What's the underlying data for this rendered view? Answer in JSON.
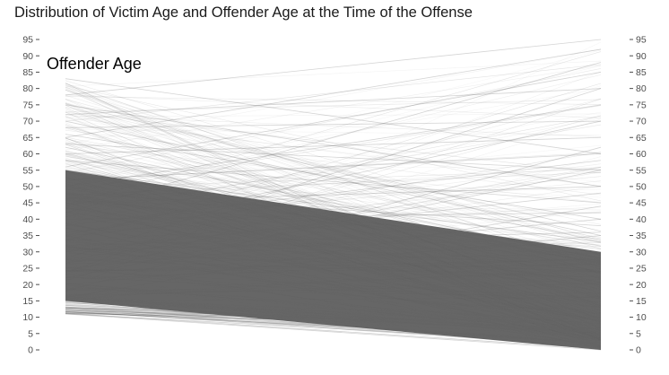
{
  "chart_data": {
    "type": "parallel_coordinates_slopegraph",
    "title": "Distribution of Victim Age and Offender Age at the Time of the Offense",
    "axes": [
      {
        "label": "Offender Age",
        "position": "left"
      },
      {
        "label": "",
        "position": "right"
      }
    ],
    "ylim": [
      0,
      95
    ],
    "y_ticks": [
      0,
      5,
      10,
      15,
      20,
      25,
      30,
      35,
      40,
      45,
      50,
      55,
      60,
      65,
      70,
      75,
      80,
      85,
      90,
      95
    ],
    "left_axis_range": [
      11,
      83
    ],
    "right_axis_range": [
      0,
      95
    ],
    "grid": false,
    "legend": "none",
    "line_color": "#666666",
    "dense_band": {
      "left_range": [
        15,
        55
      ],
      "right_range": [
        0,
        30
      ]
    },
    "sample_lines": [
      {
        "left": 83,
        "right": 60
      },
      {
        "left": 78,
        "right": 95
      },
      {
        "left": 75,
        "right": 50
      },
      {
        "left": 72,
        "right": 80
      },
      {
        "left": 70,
        "right": 35
      },
      {
        "left": 68,
        "right": 70
      },
      {
        "left": 66,
        "right": 40
      },
      {
        "left": 65,
        "right": 92
      },
      {
        "left": 63,
        "right": 55
      },
      {
        "left": 62,
        "right": 28
      },
      {
        "left": 60,
        "right": 65
      },
      {
        "left": 58,
        "right": 45
      },
      {
        "left": 56,
        "right": 85
      },
      {
        "left": 55,
        "right": 33
      },
      {
        "left": 52,
        "right": 60
      },
      {
        "left": 50,
        "right": 75
      },
      {
        "left": 48,
        "right": 38
      },
      {
        "left": 45,
        "right": 50
      },
      {
        "left": 42,
        "right": 88
      },
      {
        "left": 40,
        "right": 42
      },
      {
        "left": 38,
        "right": 58
      },
      {
        "left": 35,
        "right": 70
      },
      {
        "left": 32,
        "right": 36
      },
      {
        "left": 30,
        "right": 48
      },
      {
        "left": 28,
        "right": 80
      },
      {
        "left": 25,
        "right": 40
      },
      {
        "left": 22,
        "right": 55
      },
      {
        "left": 20,
        "right": 35
      },
      {
        "left": 18,
        "right": 62
      },
      {
        "left": 16,
        "right": 44
      },
      {
        "left": 14,
        "right": 5
      },
      {
        "left": 13,
        "right": 2
      },
      {
        "left": 12,
        "right": 1
      },
      {
        "left": 11,
        "right": 0
      }
    ]
  }
}
